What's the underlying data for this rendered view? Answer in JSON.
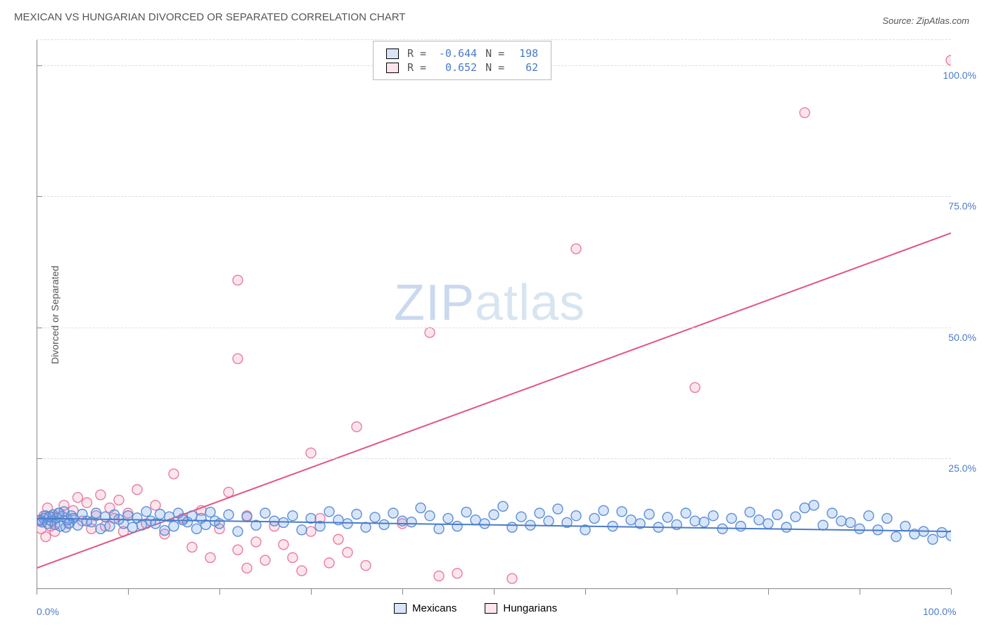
{
  "title": "MEXICAN VS HUNGARIAN DIVORCED OR SEPARATED CORRELATION CHART",
  "source": "Source: ZipAtlas.com",
  "y_axis_label": "Divorced or Separated",
  "watermark_bold": "ZIP",
  "watermark_light": "atlas",
  "chart": {
    "type": "scatter",
    "xlim": [
      0,
      100
    ],
    "ylim": [
      0,
      105
    ],
    "y_ticks": [
      25,
      50,
      75,
      100
    ],
    "y_tick_labels": [
      "25.0%",
      "50.0%",
      "75.0%",
      "100.0%"
    ],
    "x_ticks": [
      0,
      10,
      20,
      30,
      40,
      50,
      60,
      70,
      80,
      90,
      100
    ],
    "x_tick_labels_visible": {
      "0": "0.0%",
      "100": "100.0%"
    },
    "background_color": "#ffffff",
    "grid_color": "#dddddd",
    "axis_color": "#888888",
    "tick_label_color": "#4a7bc8",
    "marker_radius": 7,
    "marker_opacity_fill": 0.25,
    "series": {
      "mexicans": {
        "label": "Mexicans",
        "fill_color": "rgba(100,150,230,0.25)",
        "stroke_color": "#5a8fd6",
        "trend_color": "#4a7bc8",
        "trend_width": 2,
        "R": "-0.644",
        "N": "198",
        "trend": {
          "x1": 0,
          "y1": 13.5,
          "x2": 100,
          "y2": 11.0
        },
        "points": [
          [
            0.4,
            13.2
          ],
          [
            0.6,
            12.8
          ],
          [
            0.8,
            13.5
          ],
          [
            1.0,
            14.0
          ],
          [
            1.2,
            12.5
          ],
          [
            1.4,
            13.8
          ],
          [
            1.6,
            13.0
          ],
          [
            1.8,
            14.2
          ],
          [
            2.0,
            12.3
          ],
          [
            2.2,
            13.6
          ],
          [
            2.4,
            14.5
          ],
          [
            2.6,
            12.0
          ],
          [
            2.8,
            13.9
          ],
          [
            3.0,
            14.8
          ],
          [
            3.2,
            11.8
          ],
          [
            3.4,
            13.2
          ],
          [
            3.6,
            12.6
          ],
          [
            3.8,
            14.0
          ],
          [
            4.0,
            13.5
          ],
          [
            4.5,
            12.2
          ],
          [
            5.0,
            14.3
          ],
          [
            5.5,
            13.0
          ],
          [
            6.0,
            12.8
          ],
          [
            6.5,
            14.5
          ],
          [
            7.0,
            11.5
          ],
          [
            7.5,
            13.8
          ],
          [
            8.0,
            12.0
          ],
          [
            8.5,
            14.2
          ],
          [
            9.0,
            13.3
          ],
          [
            9.5,
            12.5
          ],
          [
            10,
            14.0
          ],
          [
            10.5,
            11.8
          ],
          [
            11,
            13.6
          ],
          [
            11.5,
            12.2
          ],
          [
            12,
            14.8
          ],
          [
            12.5,
            13.0
          ],
          [
            13,
            12.5
          ],
          [
            13.5,
            14.3
          ],
          [
            14,
            11.2
          ],
          [
            14.5,
            13.8
          ],
          [
            15,
            12.0
          ],
          [
            15.5,
            14.5
          ],
          [
            16,
            13.2
          ],
          [
            16.5,
            12.8
          ],
          [
            17,
            14.0
          ],
          [
            17.5,
            11.5
          ],
          [
            18,
            13.5
          ],
          [
            18.5,
            12.3
          ],
          [
            19,
            14.7
          ],
          [
            19.5,
            13.0
          ],
          [
            20,
            12.5
          ],
          [
            21,
            14.2
          ],
          [
            22,
            11.0
          ],
          [
            23,
            13.8
          ],
          [
            24,
            12.2
          ],
          [
            25,
            14.5
          ],
          [
            26,
            13.0
          ],
          [
            27,
            12.7
          ],
          [
            28,
            14.0
          ],
          [
            29,
            11.3
          ],
          [
            30,
            13.5
          ],
          [
            31,
            12.0
          ],
          [
            32,
            14.8
          ],
          [
            33,
            13.2
          ],
          [
            34,
            12.5
          ],
          [
            35,
            14.3
          ],
          [
            36,
            11.8
          ],
          [
            37,
            13.7
          ],
          [
            38,
            12.3
          ],
          [
            39,
            14.5
          ],
          [
            40,
            13.0
          ],
          [
            41,
            12.8
          ],
          [
            42,
            15.5
          ],
          [
            43,
            14.0
          ],
          [
            44,
            11.5
          ],
          [
            45,
            13.5
          ],
          [
            46,
            12.0
          ],
          [
            47,
            14.7
          ],
          [
            48,
            13.2
          ],
          [
            49,
            12.5
          ],
          [
            50,
            14.2
          ],
          [
            51,
            15.8
          ],
          [
            52,
            11.8
          ],
          [
            53,
            13.8
          ],
          [
            54,
            12.2
          ],
          [
            55,
            14.5
          ],
          [
            56,
            13.0
          ],
          [
            57,
            15.3
          ],
          [
            58,
            12.7
          ],
          [
            59,
            14.0
          ],
          [
            60,
            11.3
          ],
          [
            61,
            13.5
          ],
          [
            62,
            15.0
          ],
          [
            63,
            12.0
          ],
          [
            64,
            14.8
          ],
          [
            65,
            13.2
          ],
          [
            66,
            12.5
          ],
          [
            67,
            14.3
          ],
          [
            68,
            11.8
          ],
          [
            69,
            13.7
          ],
          [
            70,
            12.3
          ],
          [
            71,
            14.5
          ],
          [
            72,
            13.0
          ],
          [
            73,
            12.8
          ],
          [
            74,
            14.0
          ],
          [
            75,
            11.5
          ],
          [
            76,
            13.5
          ],
          [
            77,
            12.0
          ],
          [
            78,
            14.7
          ],
          [
            79,
            13.2
          ],
          [
            80,
            12.5
          ],
          [
            81,
            14.2
          ],
          [
            82,
            11.8
          ],
          [
            83,
            13.8
          ],
          [
            84,
            15.5
          ],
          [
            85,
            16.0
          ],
          [
            86,
            12.2
          ],
          [
            87,
            14.5
          ],
          [
            88,
            13.0
          ],
          [
            89,
            12.7
          ],
          [
            90,
            11.5
          ],
          [
            91,
            14.0
          ],
          [
            92,
            11.3
          ],
          [
            93,
            13.5
          ],
          [
            94,
            10.0
          ],
          [
            95,
            12.0
          ],
          [
            96,
            10.5
          ],
          [
            97,
            11.0
          ],
          [
            98,
            9.5
          ],
          [
            99,
            10.8
          ],
          [
            100,
            10.2
          ]
        ]
      },
      "hungarians": {
        "label": "Hungarians",
        "fill_color": "rgba(240,130,160,0.2)",
        "stroke_color": "#e87ca0",
        "trend_color": "#e25582",
        "trend_width": 2,
        "R": "0.652",
        "N": "62",
        "trend": {
          "x1": 0,
          "y1": 4.0,
          "x2": 100,
          "y2": 68.0
        },
        "points": [
          [
            0.3,
            13.0
          ],
          [
            0.5,
            11.5
          ],
          [
            0.8,
            14.0
          ],
          [
            1.0,
            10.0
          ],
          [
            1.2,
            15.5
          ],
          [
            1.5,
            12.0
          ],
          [
            1.8,
            13.8
          ],
          [
            2.0,
            11.0
          ],
          [
            2.5,
            14.5
          ],
          [
            3.0,
            16.0
          ],
          [
            3.5,
            12.5
          ],
          [
            4.0,
            15.0
          ],
          [
            4.5,
            17.5
          ],
          [
            5.0,
            13.0
          ],
          [
            5.5,
            16.5
          ],
          [
            6.0,
            11.5
          ],
          [
            6.5,
            14.0
          ],
          [
            7.0,
            18.0
          ],
          [
            7.5,
            12.0
          ],
          [
            8.0,
            15.5
          ],
          [
            8.5,
            13.5
          ],
          [
            9.0,
            17.0
          ],
          [
            9.5,
            11.0
          ],
          [
            10,
            14.5
          ],
          [
            11,
            19.0
          ],
          [
            12,
            12.5
          ],
          [
            13,
            16.0
          ],
          [
            14,
            10.5
          ],
          [
            15,
            22.0
          ],
          [
            16,
            13.5
          ],
          [
            17,
            8.0
          ],
          [
            18,
            15.0
          ],
          [
            19,
            6.0
          ],
          [
            20,
            11.5
          ],
          [
            21,
            18.5
          ],
          [
            22,
            7.5
          ],
          [
            23,
            14.0
          ],
          [
            24,
            9.0
          ],
          [
            25,
            5.5
          ],
          [
            26,
            12.0
          ],
          [
            22,
            59.0
          ],
          [
            22,
            44.0
          ],
          [
            23,
            4.0
          ],
          [
            27,
            8.5
          ],
          [
            28,
            6.0
          ],
          [
            29,
            3.5
          ],
          [
            30,
            26.0
          ],
          [
            30,
            11.0
          ],
          [
            31,
            13.5
          ],
          [
            32,
            5.0
          ],
          [
            33,
            9.5
          ],
          [
            34,
            7.0
          ],
          [
            35,
            31.0
          ],
          [
            36,
            4.5
          ],
          [
            40,
            12.5
          ],
          [
            43,
            49.0
          ],
          [
            44,
            2.5
          ],
          [
            46,
            3.0
          ],
          [
            52,
            2.0
          ],
          [
            59,
            65.0
          ],
          [
            72,
            38.5
          ],
          [
            84,
            91.0
          ],
          [
            100,
            101.0
          ]
        ]
      }
    }
  },
  "legend_top": {
    "rows": [
      {
        "swatch": "blue",
        "r_label": "R =",
        "r_val": "-0.644",
        "n_label": "N =",
        "n_val": "198"
      },
      {
        "swatch": "pink",
        "r_label": "R =",
        "r_val": " 0.652",
        "n_label": "N =",
        "n_val": " 62"
      }
    ]
  },
  "legend_bottom": {
    "items": [
      {
        "swatch": "blue",
        "label": "Mexicans"
      },
      {
        "swatch": "pink",
        "label": "Hungarians"
      }
    ]
  },
  "font": {
    "title_size": 15,
    "axis_label_size": 14,
    "tick_size": 14,
    "legend_size": 15,
    "watermark_size": 72
  }
}
